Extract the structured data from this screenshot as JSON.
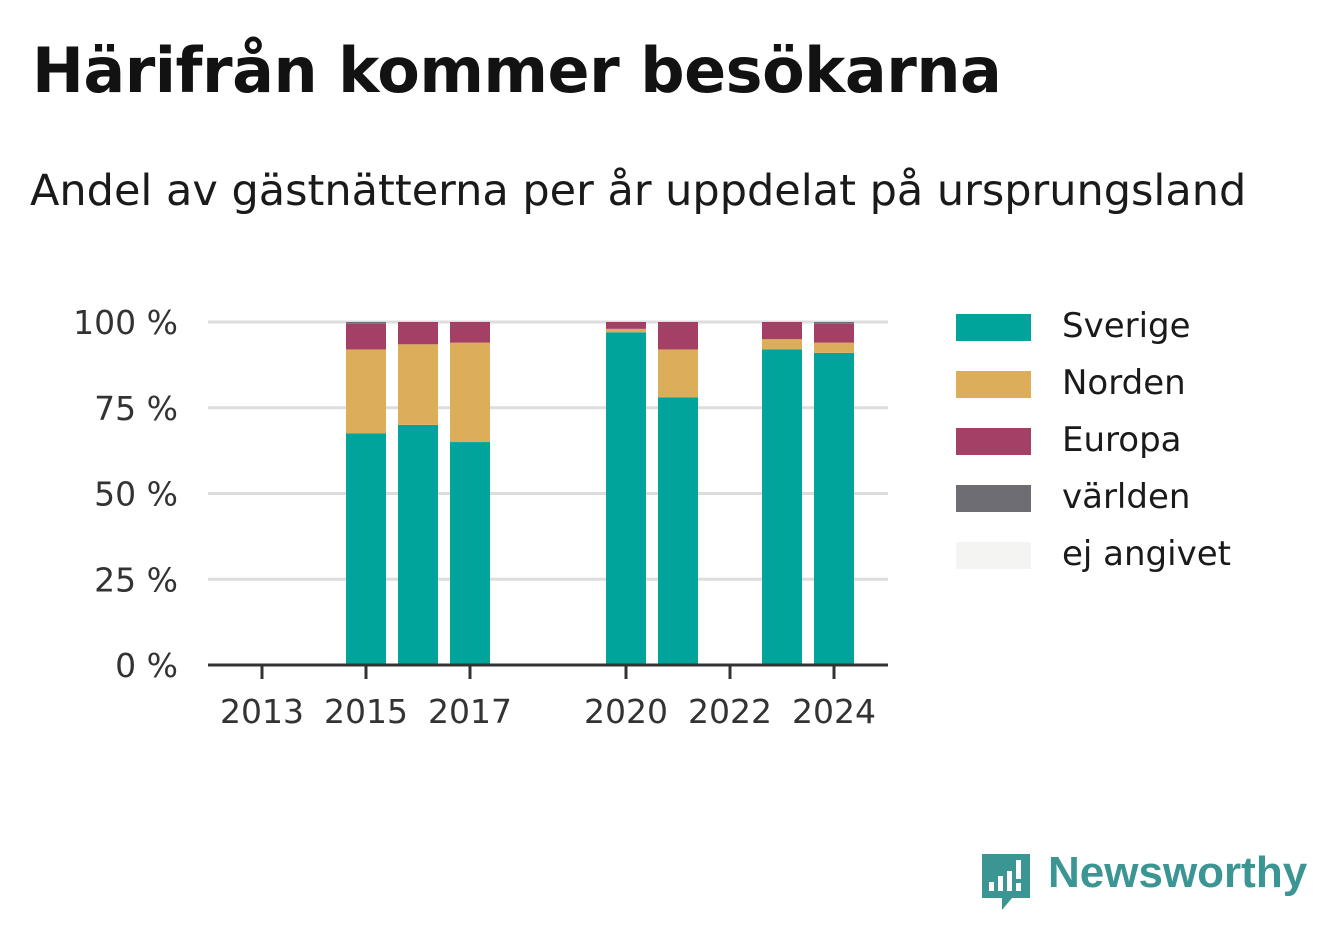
{
  "title": "Härifrån kommer besökarna",
  "subtitle": "Andel av gästnätterna per år uppdelat på ursprungsland",
  "brand": {
    "name": "Newsworthy",
    "icon": "newsworthy-logo-icon",
    "color": "#3b9593"
  },
  "chart_data": {
    "type": "bar",
    "stacked": true,
    "title": "Härifrån kommer besökarna",
    "subtitle": "Andel av gästnätterna per år uppdelat på ursprungsland",
    "categories": [
      "2013",
      "2014",
      "2015",
      "2016",
      "2017",
      "2018",
      "2019",
      "2020",
      "2021",
      "2022",
      "2023",
      "2024"
    ],
    "x_tick_labels": [
      "2013",
      "2015",
      "2017",
      "2020",
      "2022",
      "2024"
    ],
    "y_tick_labels": [
      "0 %",
      "25 %",
      "50 %",
      "75 %",
      "100 %"
    ],
    "y_ticks": [
      0,
      25,
      50,
      75,
      100
    ],
    "ylim": [
      0,
      100
    ],
    "grid": true,
    "legend_position": "right",
    "series": [
      {
        "name": "Sverige",
        "color": "#00a49a",
        "values": [
          null,
          null,
          67.5,
          70,
          65,
          null,
          null,
          97,
          78,
          null,
          92,
          91
        ]
      },
      {
        "name": "Norden",
        "color": "#dcae5a",
        "values": [
          null,
          null,
          24.5,
          23.5,
          29,
          null,
          null,
          1,
          14,
          null,
          3,
          3
        ]
      },
      {
        "name": "Europa",
        "color": "#a43f66",
        "values": [
          null,
          null,
          7.5,
          6.5,
          6,
          null,
          null,
          2,
          8,
          null,
          5,
          5.5
        ]
      },
      {
        "name": "världen",
        "color": "#6e6d73",
        "values": [
          null,
          null,
          0.5,
          0,
          0,
          null,
          null,
          0,
          0,
          null,
          0,
          0.5
        ]
      },
      {
        "name": "ej angivet",
        "color": "#f4f4f3",
        "values": [
          null,
          null,
          0,
          0,
          0,
          null,
          null,
          0,
          0,
          null,
          0,
          0
        ]
      }
    ]
  }
}
